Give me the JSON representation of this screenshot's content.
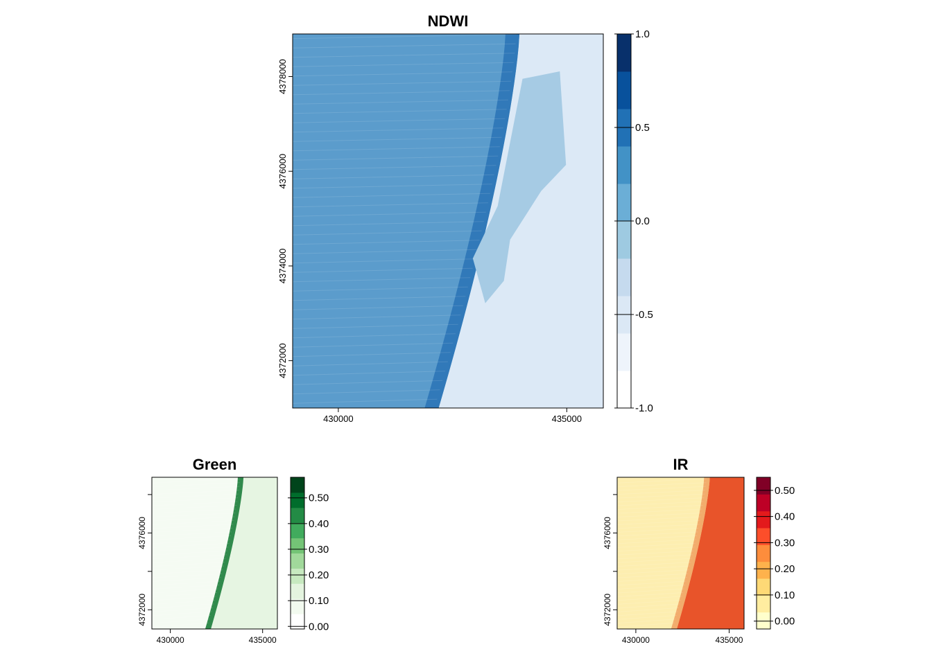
{
  "chart_data": [
    {
      "type": "heatmap",
      "title": "NDWI",
      "xlabel": "",
      "ylabel": "",
      "xlim": [
        429000,
        435800
      ],
      "ylim": [
        4371000,
        4378900
      ],
      "x_ticks": [
        430000,
        435000
      ],
      "x_tick_labels": [
        "430000",
        "435000"
      ],
      "y_ticks": [
        4372000,
        4374000,
        4376000,
        4378000
      ],
      "y_tick_labels": [
        "4372000",
        "4374000",
        "4376000",
        "4378000"
      ],
      "legend": {
        "range": [
          -1.0,
          1.0
        ],
        "ticks": [
          1.0,
          0.5,
          0.0,
          -0.5,
          -1.0
        ],
        "tick_labels": [
          "1.0",
          "0.5",
          "0.0",
          "-0.5",
          "-1.0"
        ],
        "colors": [
          "#ffffff",
          "#eef4fb",
          "#dbe8f5",
          "#c5daee",
          "#9ecae1",
          "#6baed6",
          "#4292c6",
          "#2171b5",
          "#08519c",
          "#08306b"
        ]
      },
      "regions": {
        "sea": "#5b9ccc",
        "shore": "#2a73b5",
        "land": "#dce9f6",
        "lagoon": "#a6cbe4"
      }
    },
    {
      "type": "heatmap",
      "title": "Green",
      "xlabel": "",
      "ylabel": "",
      "xlim": [
        429000,
        435800
      ],
      "ylim": [
        4371000,
        4378900
      ],
      "x_ticks": [
        430000,
        435000
      ],
      "x_tick_labels": [
        "430000",
        "435000"
      ],
      "y_ticks": [
        4372000,
        4376000
      ],
      "y_tick_labels": [
        "4372000",
        "4376000"
      ],
      "legend": {
        "range": [
          -0.01,
          0.58
        ],
        "ticks": [
          0.5,
          0.4,
          0.3,
          0.2,
          0.1,
          0.0
        ],
        "tick_labels": [
          "0.50",
          "0.40",
          "0.30",
          "0.20",
          "0.10",
          "0.00"
        ],
        "colors": [
          "#ffffff",
          "#f2faef",
          "#e4f4df",
          "#c7e9c0",
          "#a1d99b",
          "#74c476",
          "#41ab5d",
          "#238b45",
          "#006d2c",
          "#00441b"
        ]
      },
      "regions": {
        "sea": "#f5fbf3",
        "shore": "#1b7d3a",
        "land": "#e6f5e2"
      }
    },
    {
      "type": "heatmap",
      "title": "IR",
      "xlabel": "",
      "ylabel": "",
      "xlim": [
        429000,
        435800
      ],
      "ylim": [
        4371000,
        4378900
      ],
      "x_ticks": [
        430000,
        435000
      ],
      "x_tick_labels": [
        "430000",
        "435000"
      ],
      "y_ticks": [
        4372000,
        4376000
      ],
      "y_tick_labels": [
        "4372000",
        "4376000"
      ],
      "legend": {
        "range": [
          -0.03,
          0.55
        ],
        "ticks": [
          0.5,
          0.4,
          0.3,
          0.2,
          0.1,
          0.0
        ],
        "tick_labels": [
          "0.50",
          "0.40",
          "0.30",
          "0.20",
          "0.10",
          "0.00"
        ],
        "colors": [
          "#ffffcc",
          "#ffeda0",
          "#fed976",
          "#feb24c",
          "#fd8d3c",
          "#fc4e2a",
          "#e31a1c",
          "#bd0026",
          "#800026"
        ]
      },
      "regions": {
        "sea": "#fdeeb0",
        "shore": "#f0a060",
        "land": "#e8542a"
      }
    }
  ]
}
